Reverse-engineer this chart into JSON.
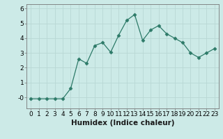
{
  "x": [
    0,
    1,
    2,
    3,
    4,
    5,
    6,
    7,
    8,
    9,
    10,
    11,
    12,
    13,
    14,
    15,
    16,
    17,
    18,
    19,
    20,
    21,
    22,
    23
  ],
  "y": [
    -0.1,
    -0.1,
    -0.1,
    -0.1,
    -0.1,
    0.6,
    2.6,
    2.3,
    3.5,
    3.7,
    3.05,
    4.2,
    5.2,
    5.6,
    3.85,
    4.55,
    4.85,
    4.3,
    4.0,
    3.7,
    3.0,
    2.7,
    3.0,
    3.3
  ],
  "line_color": "#2d7a68",
  "marker": "D",
  "marker_size": 2.5,
  "xlabel": "Humidex (Indice chaleur)",
  "xlim": [
    -0.5,
    23.5
  ],
  "ylim": [
    -0.75,
    6.3
  ],
  "yticks": [
    0,
    1,
    2,
    3,
    4,
    5,
    6
  ],
  "ytick_labels": [
    "-0",
    "1",
    "2",
    "3",
    "4",
    "5",
    "6"
  ],
  "xticks": [
    0,
    1,
    2,
    3,
    4,
    5,
    6,
    7,
    8,
    9,
    10,
    11,
    12,
    13,
    14,
    15,
    16,
    17,
    18,
    19,
    20,
    21,
    22,
    23
  ],
  "bg_color": "#cceae7",
  "grid_color": "#b8d8d4",
  "tick_fontsize": 6.5,
  "label_fontsize": 7.5
}
